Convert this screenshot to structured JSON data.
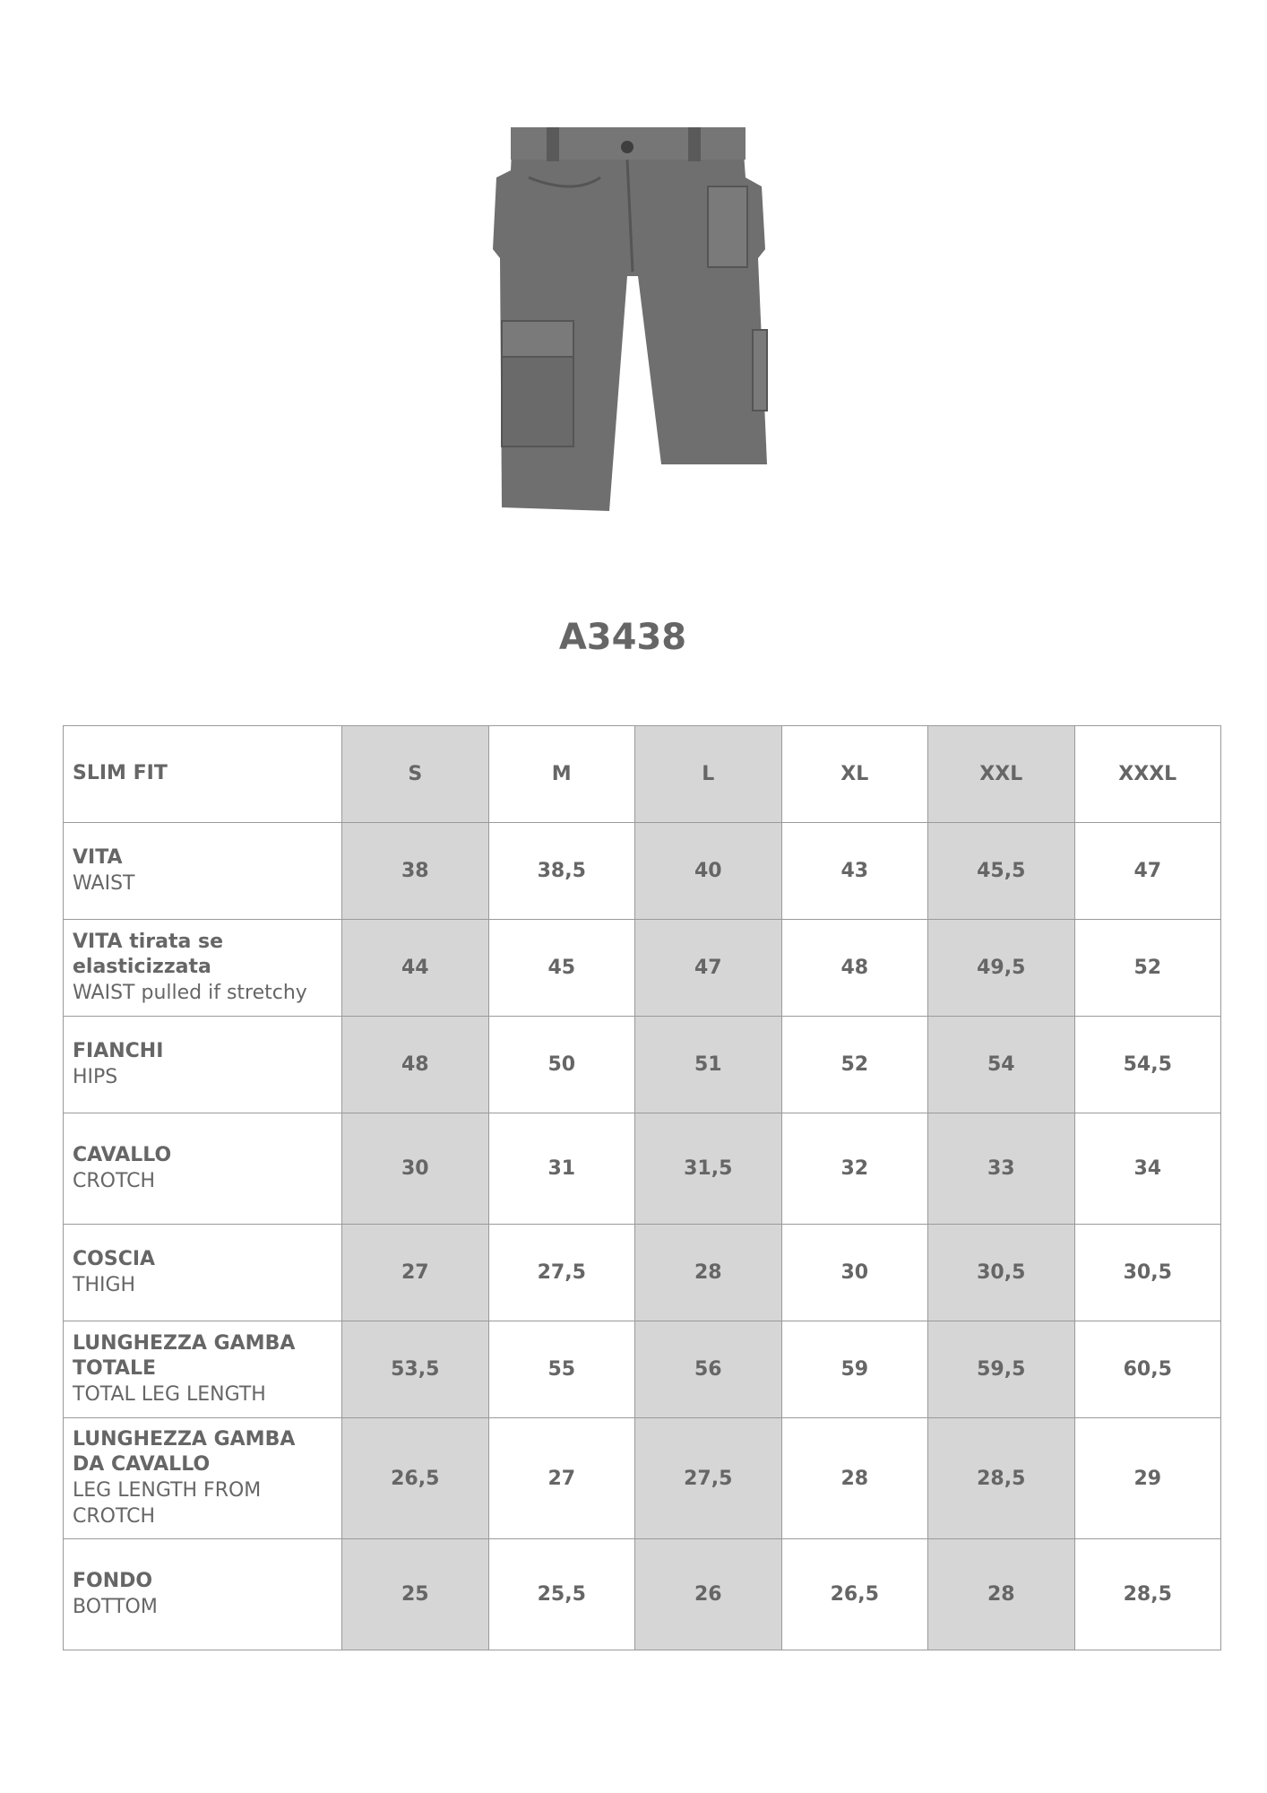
{
  "product_code": "A3438",
  "table": {
    "corner_label": "SLIM FIT",
    "sizes": [
      "S",
      "M",
      "L",
      "XL",
      "XXL",
      "XXXL"
    ],
    "rows": [
      {
        "it": "VITA",
        "en": "WAIST",
        "values": [
          "38",
          "38,5",
          "40",
          "43",
          "45,5",
          "47"
        ]
      },
      {
        "it": "VITA tirata se elasticizzata",
        "en": "WAIST pulled if stretchy",
        "values": [
          "44",
          "45",
          "47",
          "48",
          "49,5",
          "52"
        ]
      },
      {
        "it": "FIANCHI",
        "en": "HIPS",
        "values": [
          "48",
          "50",
          "51",
          "52",
          "54",
          "54,5"
        ]
      },
      {
        "it": "CAVALLO",
        "en": "CROTCH",
        "values": [
          "30",
          "31",
          "31,5",
          "32",
          "33",
          "34"
        ]
      },
      {
        "it": "COSCIA",
        "en": "THIGH",
        "values": [
          "27",
          "27,5",
          "28",
          "30",
          "30,5",
          "30,5"
        ]
      },
      {
        "it": "LUNGHEZZA GAMBA TOTALE",
        "en": "TOTAL LEG LENGTH",
        "values": [
          "53,5",
          "55",
          "56",
          "59",
          "59,5",
          "60,5"
        ]
      },
      {
        "it": "LUNGHEZZA GAMBA DA CAVALLO",
        "en": "LEG LENGTH FROM CROTCH",
        "values": [
          "26,5",
          "27",
          "27,5",
          "28",
          "28,5",
          "29"
        ]
      },
      {
        "it": "FONDO",
        "en": "BOTTOM",
        "values": [
          "25",
          "25,5",
          "26",
          "26,5",
          "28",
          "28,5"
        ]
      }
    ]
  },
  "colors": {
    "text": "#666666",
    "shade": "#d6d6d6",
    "border": "#9a9a9a",
    "garment": "#6f6f6f"
  }
}
